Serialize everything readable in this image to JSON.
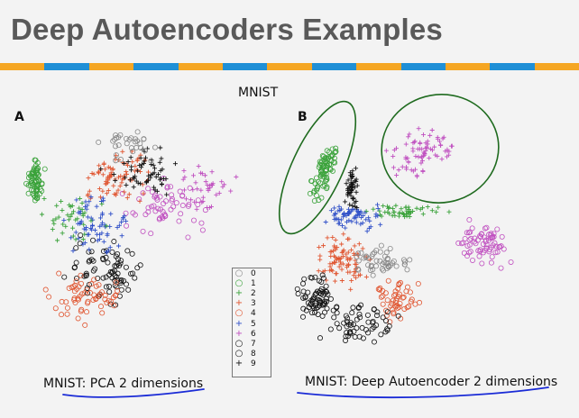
{
  "slide": {
    "title": "Deep Autoencoders Examples",
    "stripe_colors": [
      "#f5a623",
      "#1f8fd6",
      "#f5a623",
      "#1f8fd6",
      "#f5a623",
      "#1f8fd6",
      "#f5a623",
      "#1f8fd6",
      "#f5a623",
      "#1f8fd6",
      "#f5a623",
      "#1f8fd6",
      "#f5a623"
    ]
  },
  "figure": {
    "heading": "MNIST",
    "panel_a_label": "A",
    "panel_b_label": "B",
    "caption_left": "MNIST: PCA 2 dimensions",
    "caption_right": "MNIST: Deep Autoencoder 2 dimensions",
    "annotation_color": "#1a2bd6",
    "ellipse_color": "#1f6b1f"
  },
  "legend": {
    "items": [
      {
        "label": "0",
        "marker": "o",
        "color": "#888888"
      },
      {
        "label": "1",
        "marker": "o",
        "color": "#3aa23a"
      },
      {
        "label": "2",
        "marker": "+",
        "color": "#3aa23a"
      },
      {
        "label": "3",
        "marker": "+",
        "color": "#e05530"
      },
      {
        "label": "4",
        "marker": "o",
        "color": "#e05530"
      },
      {
        "label": "5",
        "marker": "+",
        "color": "#3050c8"
      },
      {
        "label": "6",
        "marker": "+",
        "color": "#c050c0"
      },
      {
        "label": "7",
        "marker": "o",
        "color": "#111111"
      },
      {
        "label": "8",
        "marker": "o",
        "color": "#111111"
      },
      {
        "label": "9",
        "marker": "+",
        "color": "#111111"
      }
    ]
  }
}
